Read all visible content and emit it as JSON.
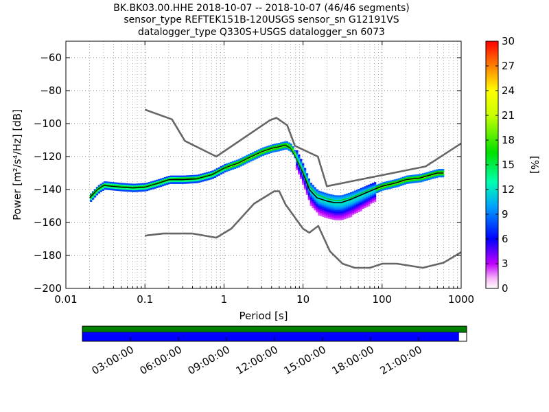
{
  "header": {
    "title_lines": [
      "BK.BK03.00.HHE   2018-10-07 -- 2018-10-07  (46/46 segments)",
      "sensor_type REFTEK151B-120USGS sensor_sn G12191VS",
      "datalogger_type Q330S+USGS datalogger_sn 6073"
    ]
  },
  "chart_data": {
    "type": "heatmap",
    "xlabel": "Period [s]",
    "ylabel": "Power [m²/s⁴/Hz] [dB]",
    "x_scale": "log",
    "xlim": [
      0.01,
      1000
    ],
    "ylim": [
      -200,
      -50
    ],
    "xticks": [
      0.01,
      0.1,
      1,
      10,
      100,
      1000
    ],
    "xtick_labels": [
      "0.01",
      "0.1",
      "1",
      "10",
      "100",
      "1000"
    ],
    "yticks": [
      -200,
      -180,
      -160,
      -140,
      -120,
      -100,
      -80,
      -60
    ],
    "ytick_labels": [
      "−200",
      "−180",
      "−160",
      "−140",
      "−120",
      "−100",
      "−80",
      "−60"
    ],
    "grid": true,
    "colorbar": {
      "label": "[%]",
      "range": [
        0,
        30
      ],
      "ticks": [
        "0",
        "3",
        "6",
        "9",
        "12",
        "15",
        "18",
        "21",
        "24",
        "27",
        "30"
      ]
    },
    "series": [
      {
        "role": "new-high-noise-model",
        "color": "#666666",
        "points": [
          [
            0.1,
            -91.5
          ],
          [
            0.22,
            -97.4
          ],
          [
            0.32,
            -110.5
          ],
          [
            0.8,
            -120
          ],
          [
            3.8,
            -98
          ],
          [
            4.6,
            -96.5
          ],
          [
            6.3,
            -101
          ],
          [
            7.9,
            -113.5
          ],
          [
            15.4,
            -120
          ],
          [
            20,
            -138
          ],
          [
            354.8,
            -126
          ],
          [
            1000,
            -112
          ]
        ]
      },
      {
        "role": "new-low-noise-model",
        "color": "#666666",
        "points": [
          [
            0.1,
            -168
          ],
          [
            0.17,
            -166.7
          ],
          [
            0.4,
            -166.7
          ],
          [
            0.8,
            -169.2
          ],
          [
            1.24,
            -163.7
          ],
          [
            2.4,
            -148.6
          ],
          [
            4.3,
            -141.1
          ],
          [
            5,
            -141.1
          ],
          [
            6,
            -149
          ],
          [
            10,
            -163.8
          ],
          [
            12,
            -166.2
          ],
          [
            15.6,
            -162.1
          ],
          [
            21.9,
            -177.5
          ],
          [
            31.6,
            -185
          ],
          [
            45,
            -187.5
          ],
          [
            70,
            -187.5
          ],
          [
            101,
            -185
          ],
          [
            154,
            -185
          ],
          [
            328,
            -187.5
          ],
          [
            600,
            -184.4
          ],
          [
            1000,
            -178
          ]
        ]
      },
      {
        "role": "mode",
        "color": "#000000",
        "points": [
          [
            0.02,
            -145
          ],
          [
            0.025,
            -140
          ],
          [
            0.03,
            -137.5
          ],
          [
            0.05,
            -138.5
          ],
          [
            0.07,
            -139
          ],
          [
            0.1,
            -138.5
          ],
          [
            0.15,
            -136
          ],
          [
            0.2,
            -134
          ],
          [
            0.3,
            -134
          ],
          [
            0.45,
            -133.5
          ],
          [
            0.7,
            -131
          ],
          [
            1,
            -127
          ],
          [
            1.5,
            -124
          ],
          [
            2,
            -121
          ],
          [
            3,
            -117
          ],
          [
            4,
            -115
          ],
          [
            5,
            -114
          ],
          [
            6,
            -113
          ],
          [
            7,
            -115
          ],
          [
            8,
            -120
          ],
          [
            10,
            -130
          ],
          [
            12,
            -140
          ],
          [
            15,
            -145
          ],
          [
            20,
            -147
          ],
          [
            25,
            -148
          ],
          [
            30,
            -148
          ],
          [
            40,
            -146
          ],
          [
            50,
            -144
          ],
          [
            70,
            -141
          ],
          [
            100,
            -138
          ],
          [
            150,
            -136
          ],
          [
            200,
            -134
          ],
          [
            300,
            -133
          ],
          [
            500,
            -130
          ],
          [
            600,
            -130
          ]
        ]
      },
      {
        "role": "mean",
        "color": "#00cc00",
        "points": [
          [
            0.02,
            -144
          ],
          [
            0.025,
            -139.5
          ],
          [
            0.03,
            -137
          ],
          [
            0.05,
            -138
          ],
          [
            0.07,
            -138.5
          ],
          [
            0.1,
            -138
          ],
          [
            0.15,
            -135.5
          ],
          [
            0.2,
            -133.5
          ],
          [
            0.3,
            -133
          ],
          [
            0.45,
            -133
          ],
          [
            0.7,
            -130.5
          ],
          [
            1,
            -126.5
          ],
          [
            1.5,
            -123.5
          ],
          [
            2,
            -120.5
          ],
          [
            3,
            -116.5
          ],
          [
            4,
            -114.5
          ],
          [
            5,
            -113.5
          ],
          [
            6,
            -112.5
          ],
          [
            7,
            -114.5
          ],
          [
            8,
            -119.5
          ],
          [
            10,
            -129
          ],
          [
            12,
            -138
          ],
          [
            15,
            -143
          ],
          [
            20,
            -145.5
          ],
          [
            25,
            -146.5
          ],
          [
            30,
            -146.5
          ],
          [
            40,
            -145
          ],
          [
            50,
            -143
          ],
          [
            70,
            -140
          ],
          [
            100,
            -137
          ],
          [
            150,
            -135
          ],
          [
            200,
            -133.5
          ],
          [
            300,
            -132.5
          ],
          [
            500,
            -129
          ],
          [
            600,
            -129
          ]
        ]
      }
    ]
  },
  "timeline": {
    "bar_colors": {
      "segments": "#008000",
      "coverage": "#0000ff"
    },
    "coverage_fraction": 0.98,
    "labels": [
      "03:00:00",
      "06:00:00",
      "09:00:00",
      "12:00:00",
      "15:00:00",
      "18:00:00",
      "21:00:00"
    ]
  }
}
